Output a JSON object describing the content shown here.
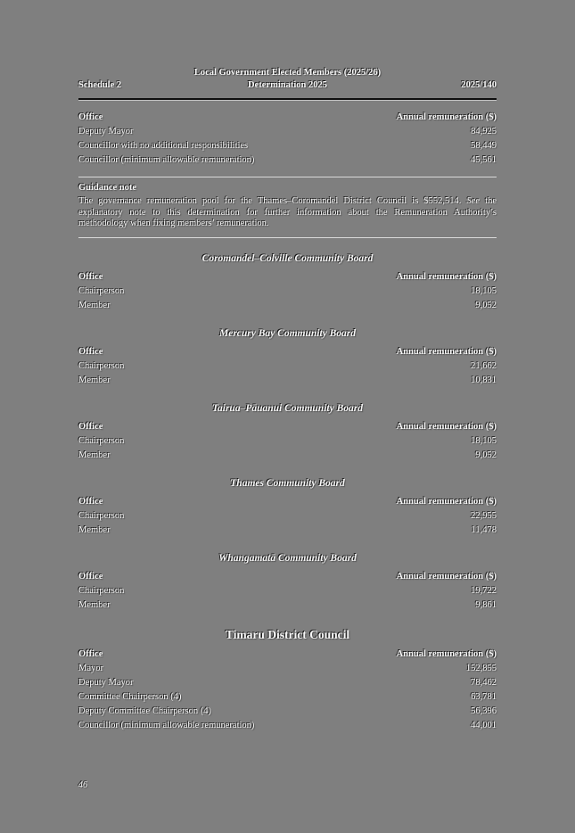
{
  "colors": {
    "background": "#7f7f7f",
    "text": "#f7f7f7",
    "rule": "#0e0e0e"
  },
  "header": {
    "schedule": "Schedule 2",
    "title_line1": "Local Government Elected Members (2025/26)",
    "title_line2": "Determination 2025",
    "instrument_number": "2025/140"
  },
  "columns": {
    "office": "Office",
    "amount": "Annual remuneration ($)"
  },
  "first_table": {
    "heading": "",
    "heading_style": "none",
    "rows": [
      {
        "office": "Deputy Mayor",
        "amount": "84,925"
      },
      {
        "office": "Councillor with no additional responsibilities",
        "amount": "58,449"
      },
      {
        "office": "Councillor (minimum allowable remuneration)",
        "amount": "45,561"
      }
    ]
  },
  "guidance": {
    "title": "Guidance note",
    "before_italic": "The governance remuneration pool for the Thames–Coromandel District Council is $552,514. ",
    "italic_word": "See",
    "after_italic": " the explanatory note to this determination for further information about the Remuneration Authority’s methodology when fixing members’ remuneration."
  },
  "sections": [
    {
      "heading": "Coromandel–Colville Community Board",
      "heading_style": "italic",
      "rows": [
        {
          "office": "Chairperson",
          "amount": "18,105"
        },
        {
          "office": "Member",
          "amount": "9,052"
        }
      ]
    },
    {
      "heading": "Mercury Bay Community Board",
      "heading_style": "italic",
      "rows": [
        {
          "office": "Chairperson",
          "amount": "21,662"
        },
        {
          "office": "Member",
          "amount": "10,831"
        }
      ]
    },
    {
      "heading": "Tairua–Pāuanui Community Board",
      "heading_style": "italic",
      "rows": [
        {
          "office": "Chairperson",
          "amount": "18,105"
        },
        {
          "office": "Member",
          "amount": "9,052"
        }
      ]
    },
    {
      "heading": "Thames Community Board",
      "heading_style": "italic",
      "rows": [
        {
          "office": "Chairperson",
          "amount": "22,955"
        },
        {
          "office": "Member",
          "amount": "11,478"
        }
      ]
    },
    {
      "heading": "Whangamatā Community Board",
      "heading_style": "italic",
      "rows": [
        {
          "office": "Chairperson",
          "amount": "19,722"
        },
        {
          "office": "Member",
          "amount": "9,861"
        }
      ]
    },
    {
      "heading": "Timaru District Council",
      "heading_style": "bold",
      "rows": [
        {
          "office": "Mayor",
          "amount": "152,855"
        },
        {
          "office": "Deputy Mayor",
          "amount": "78,462"
        },
        {
          "office": "Committee Chairperson (4)",
          "amount": "63,781"
        },
        {
          "office": "Deputy Committee Chairperson (4)",
          "amount": "56,396"
        },
        {
          "office": "Councillor (minimum allowable remuneration)",
          "amount": "44,001"
        }
      ]
    }
  ],
  "footer": {
    "page_number": "46"
  }
}
